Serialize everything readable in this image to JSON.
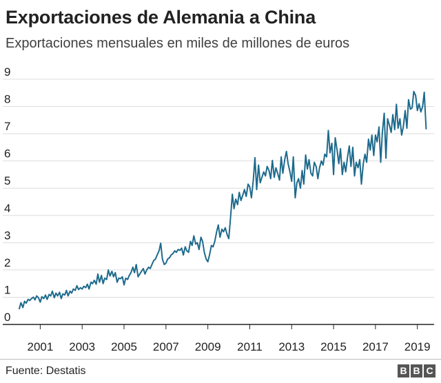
{
  "header": {
    "title": "Exportaciones de Alemania a China",
    "subtitle": "Exportaciones mensuales en miles de millones de euros"
  },
  "footer": {
    "source": "Fuente: Destatis",
    "logo_letters": [
      "B",
      "B",
      "C"
    ]
  },
  "colors": {
    "line": "#1d6a8c",
    "grid": "#dcdcdc",
    "axis": "#222222",
    "text": "#222222"
  },
  "chart_data": {
    "type": "line",
    "title": "Exportaciones de Alemania a China",
    "subtitle": "Exportaciones mensuales en miles de millones de euros",
    "xlabel": "",
    "ylabel": "",
    "xlim": [
      2000.0,
      2019.8
    ],
    "ylim": [
      0,
      9
    ],
    "yticks": [
      0,
      1,
      2,
      3,
      4,
      5,
      6,
      7,
      8,
      9
    ],
    "xticks": [
      2001,
      2003,
      2005,
      2007,
      2009,
      2011,
      2013,
      2015,
      2017,
      2019
    ],
    "grid": true,
    "legend": "none",
    "series": [
      {
        "name": "",
        "x": [
          2000.0,
          2000.08,
          2000.17,
          2000.25,
          2000.33,
          2000.42,
          2000.5,
          2000.58,
          2000.67,
          2000.75,
          2000.83,
          2000.92,
          2001.0,
          2001.08,
          2001.17,
          2001.25,
          2001.33,
          2001.42,
          2001.5,
          2001.58,
          2001.67,
          2001.75,
          2001.83,
          2001.92,
          2002.0,
          2002.08,
          2002.17,
          2002.25,
          2002.33,
          2002.42,
          2002.5,
          2002.58,
          2002.67,
          2002.75,
          2002.83,
          2002.92,
          2003.0,
          2003.08,
          2003.17,
          2003.25,
          2003.33,
          2003.42,
          2003.5,
          2003.58,
          2003.67,
          2003.75,
          2003.83,
          2003.92,
          2004.0,
          2004.08,
          2004.17,
          2004.25,
          2004.33,
          2004.42,
          2004.5,
          2004.58,
          2004.67,
          2004.75,
          2004.83,
          2004.92,
          2005.0,
          2005.08,
          2005.17,
          2005.25,
          2005.33,
          2005.42,
          2005.5,
          2005.58,
          2005.67,
          2005.75,
          2005.83,
          2005.92,
          2006.0,
          2006.08,
          2006.17,
          2006.25,
          2006.33,
          2006.42,
          2006.5,
          2006.58,
          2006.67,
          2006.75,
          2006.83,
          2006.92,
          2007.0,
          2007.08,
          2007.17,
          2007.25,
          2007.33,
          2007.42,
          2007.5,
          2007.58,
          2007.67,
          2007.75,
          2007.83,
          2007.92,
          2008.0,
          2008.08,
          2008.17,
          2008.25,
          2008.33,
          2008.42,
          2008.5,
          2008.58,
          2008.67,
          2008.75,
          2008.83,
          2008.92,
          2009.0,
          2009.08,
          2009.17,
          2009.25,
          2009.33,
          2009.42,
          2009.5,
          2009.58,
          2009.67,
          2009.75,
          2009.83,
          2009.92,
          2010.0,
          2010.08,
          2010.17,
          2010.25,
          2010.33,
          2010.42,
          2010.5,
          2010.58,
          2010.67,
          2010.75,
          2010.83,
          2010.92,
          2011.0,
          2011.08,
          2011.17,
          2011.25,
          2011.33,
          2011.42,
          2011.5,
          2011.58,
          2011.67,
          2011.75,
          2011.83,
          2011.92,
          2012.0,
          2012.08,
          2012.17,
          2012.25,
          2012.33,
          2012.42,
          2012.5,
          2012.58,
          2012.67,
          2012.75,
          2012.83,
          2012.92,
          2013.0,
          2013.08,
          2013.17,
          2013.25,
          2013.33,
          2013.42,
          2013.5,
          2013.58,
          2013.67,
          2013.75,
          2013.83,
          2013.92,
          2014.0,
          2014.08,
          2014.17,
          2014.25,
          2014.33,
          2014.42,
          2014.5,
          2014.58,
          2014.67,
          2014.75,
          2014.83,
          2014.92,
          2015.0,
          2015.08,
          2015.17,
          2015.25,
          2015.33,
          2015.42,
          2015.5,
          2015.58,
          2015.67,
          2015.75,
          2015.83,
          2015.92,
          2016.0,
          2016.08,
          2016.17,
          2016.25,
          2016.33,
          2016.42,
          2016.5,
          2016.58,
          2016.67,
          2016.75,
          2016.83,
          2016.92,
          2017.0,
          2017.08,
          2017.17,
          2017.25,
          2017.33,
          2017.42,
          2017.5,
          2017.58,
          2017.67,
          2017.75,
          2017.83,
          2017.92,
          2018.0,
          2018.08,
          2018.17,
          2018.25,
          2018.33,
          2018.42,
          2018.5,
          2018.58,
          2018.67,
          2018.75,
          2018.83,
          2018.92,
          2019.0,
          2019.08,
          2019.17,
          2019.25,
          2019.33,
          2019.42
        ],
        "y": [
          0.58,
          0.8,
          0.62,
          0.85,
          0.78,
          0.92,
          0.88,
          0.95,
          1.0,
          0.9,
          1.05,
          0.97,
          0.82,
          1.02,
          0.95,
          1.08,
          0.92,
          1.1,
          1.05,
          1.22,
          0.98,
          1.15,
          1.05,
          1.18,
          0.95,
          1.12,
          1.08,
          1.25,
          1.05,
          1.22,
          1.15,
          1.3,
          1.25,
          1.42,
          1.28,
          1.35,
          1.3,
          1.4,
          1.35,
          1.48,
          1.3,
          1.55,
          1.5,
          1.62,
          1.48,
          1.85,
          1.55,
          1.8,
          1.5,
          1.7,
          1.65,
          2.0,
          1.78,
          1.95,
          1.75,
          1.9,
          1.55,
          1.7,
          1.68,
          1.75,
          1.45,
          1.7,
          1.65,
          1.8,
          1.9,
          2.1,
          1.9,
          2.2,
          1.75,
          1.85,
          1.95,
          2.05,
          1.85,
          2.0,
          2.1,
          2.05,
          2.2,
          2.35,
          2.4,
          2.55,
          2.7,
          2.98,
          2.4,
          2.2,
          2.25,
          2.4,
          2.45,
          2.55,
          2.6,
          2.7,
          2.65,
          2.75,
          2.72,
          2.8,
          2.55,
          2.85,
          2.7,
          2.65,
          3.05,
          2.9,
          3.25,
          2.95,
          3.0,
          2.75,
          3.2,
          3.05,
          2.65,
          2.4,
          2.3,
          2.55,
          2.9,
          2.85,
          3.05,
          3.4,
          3.65,
          3.2,
          3.5,
          3.4,
          3.55,
          3.3,
          3.15,
          3.9,
          4.78,
          4.25,
          4.6,
          4.4,
          4.85,
          4.55,
          4.75,
          4.95,
          4.7,
          5.15,
          5.05,
          4.65,
          5.3,
          6.12,
          4.95,
          5.85,
          5.2,
          5.4,
          5.6,
          5.45,
          5.8,
          5.65,
          5.35,
          6.02,
          5.4,
          5.75,
          5.55,
          5.3,
          6.15,
          5.55,
          6.05,
          6.35,
          5.9,
          5.6,
          5.25,
          6.15,
          4.65,
          5.2,
          5.35,
          5.0,
          5.65,
          5.15,
          6.22,
          5.7,
          6.05,
          5.55,
          5.45,
          5.95,
          5.8,
          5.35,
          5.75,
          6.0,
          5.85,
          6.25,
          6.15,
          7.12,
          6.3,
          6.65,
          5.5,
          6.85,
          6.4,
          5.9,
          6.45,
          5.5,
          5.95,
          5.6,
          6.15,
          6.55,
          5.8,
          6.5,
          5.45,
          5.95,
          5.75,
          6.05,
          5.15,
          5.9,
          6.25,
          5.95,
          6.8,
          6.4,
          6.95,
          6.2,
          6.95,
          6.7,
          7.25,
          5.95,
          7.05,
          7.75,
          6.1,
          7.55,
          7.3,
          7.05,
          7.7,
          7.15,
          8.08,
          7.2,
          7.55,
          6.95,
          7.25,
          7.85,
          7.2,
          8.25,
          7.9,
          7.95,
          8.55,
          8.4,
          7.85,
          8.1,
          7.8,
          8.0,
          8.52,
          7.18
        ]
      }
    ]
  }
}
